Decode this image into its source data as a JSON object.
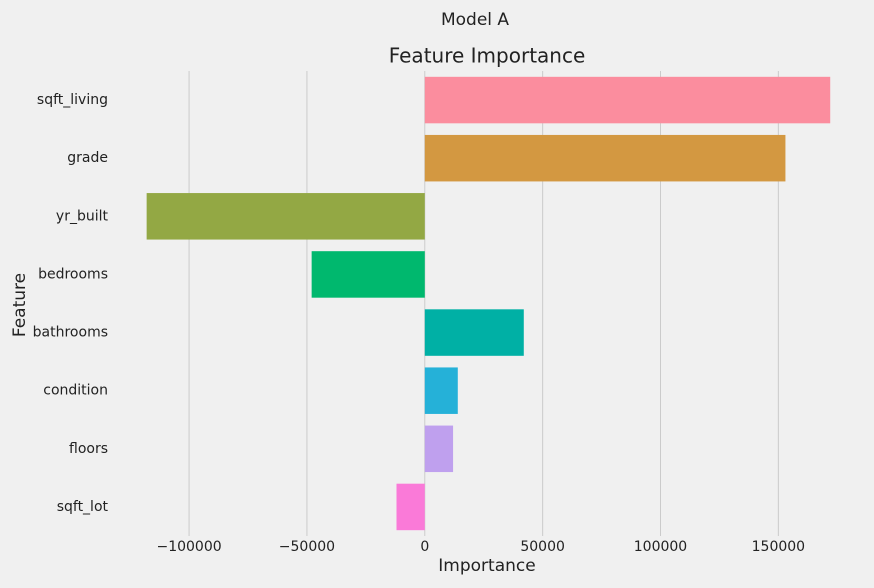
{
  "chart_data": {
    "type": "barh",
    "suptitle": "Model A",
    "title": "Feature Importance",
    "xlabel": "Importance",
    "ylabel": "Feature",
    "categories": [
      "sqft_living",
      "grade",
      "yr_built",
      "bedrooms",
      "bathrooms",
      "condition",
      "floors",
      "sqft_lot"
    ],
    "values": [
      172000,
      153000,
      -118000,
      -48000,
      42000,
      14000,
      12000,
      -12000
    ],
    "colors": [
      "#fb8d9e",
      "#d39841",
      "#93a844",
      "#00b86e",
      "#00b0a5",
      "#25b1d8",
      "#bfa0ee",
      "#fa7ad8"
    ],
    "xlim": [
      -131000,
      177000
    ],
    "xticks": [
      {
        "value": -100000,
        "label": "−100000"
      },
      {
        "value": -50000,
        "label": "−50000"
      },
      0,
      50000,
      100000,
      150000
    ],
    "grid": true
  }
}
